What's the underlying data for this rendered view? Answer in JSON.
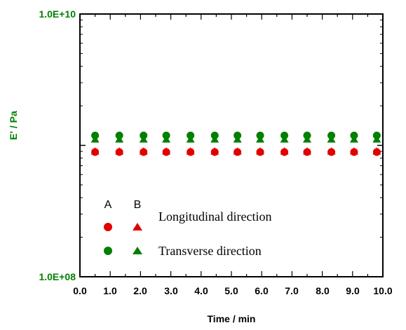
{
  "chart_data": {
    "type": "scatter",
    "xlabel": "Time / min",
    "ylabel": "E' / Pa",
    "xlim": [
      0,
      10
    ],
    "ylim": [
      100000000,
      10000000000
    ],
    "y_scale": "log",
    "x_ticks": [
      "0.0",
      "1.0",
      "2.0",
      "3.0",
      "4.0",
      "5.0",
      "6.0",
      "7.0",
      "8.0",
      "9.0",
      "10.0"
    ],
    "y_ticks": [
      "1.0E+08",
      "1.0E+10"
    ],
    "y_tick_values": [
      100000000,
      10000000000
    ],
    "x": [
      0.5,
      1.3,
      2.1,
      2.85,
      3.65,
      4.45,
      5.2,
      5.95,
      6.75,
      7.5,
      8.3,
      9.05,
      9.8
    ],
    "series": [
      {
        "marker": "circle",
        "color": "#e00000",
        "values": [
          890000000,
          890000000,
          890000000,
          890000000,
          890000000,
          890000000,
          890000000,
          890000000,
          890000000,
          890000000,
          890000000,
          890000000,
          890000000
        ]
      },
      {
        "marker": "triangle",
        "color": "#e00000",
        "values": [
          900000000,
          900000000,
          900000000,
          900000000,
          900000000,
          900000000,
          900000000,
          900000000,
          900000000,
          900000000,
          900000000,
          900000000,
          900000000
        ]
      },
      {
        "marker": "circle",
        "color": "#008000",
        "values": [
          1190000000,
          1190000000,
          1190000000,
          1190000000,
          1190000000,
          1190000000,
          1190000000,
          1190000000,
          1190000000,
          1190000000,
          1190000000,
          1190000000,
          1190000000
        ]
      },
      {
        "marker": "triangle",
        "color": "#008000",
        "values": [
          1110000000,
          1110000000,
          1110000000,
          1110000000,
          1110000000,
          1110000000,
          1110000000,
          1110000000,
          1110000000,
          1110000000,
          1110000000,
          1110000000,
          1110000000
        ]
      }
    ],
    "legend": {
      "position": "bottom-left",
      "headers": [
        "A",
        "B"
      ],
      "rows": [
        {
          "label": "Longitudinal direction",
          "color": "#e00000"
        },
        {
          "label": "Transverse direction",
          "color": "#008000"
        }
      ]
    },
    "ylabel_color": "#008000",
    "ytick_color": "#008000",
    "grid": false
  }
}
